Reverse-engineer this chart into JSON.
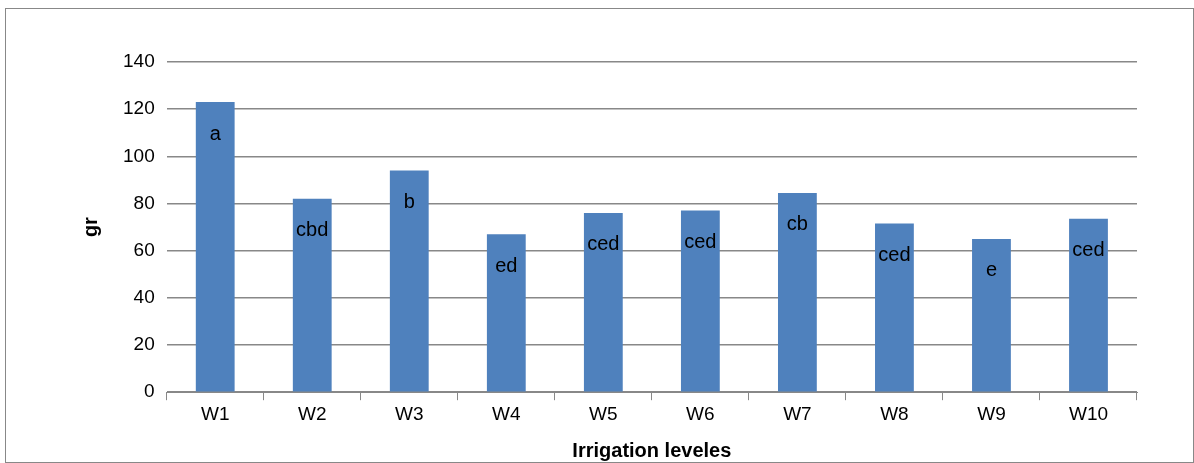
{
  "chart_data": {
    "type": "bar",
    "xlabel": "Irrigation leveles",
    "ylabel": "gr",
    "categories": [
      "W1",
      "W2",
      "W3",
      "W4",
      "W5",
      "W6",
      "W7",
      "W8",
      "W9",
      "W10"
    ],
    "values": [
      123,
      82,
      94,
      67,
      76,
      77,
      84.5,
      71.5,
      65,
      73.5
    ],
    "color": "#4f81bd",
    "ylim": [
      0,
      140
    ],
    "yticks": [
      0,
      20,
      40,
      60,
      80,
      100,
      120,
      140
    ],
    "grid": "y",
    "annotations": [
      "a",
      "cbd",
      "b",
      "ed",
      "ced",
      "ced",
      "cb",
      "ced",
      "e",
      "ced"
    ]
  }
}
